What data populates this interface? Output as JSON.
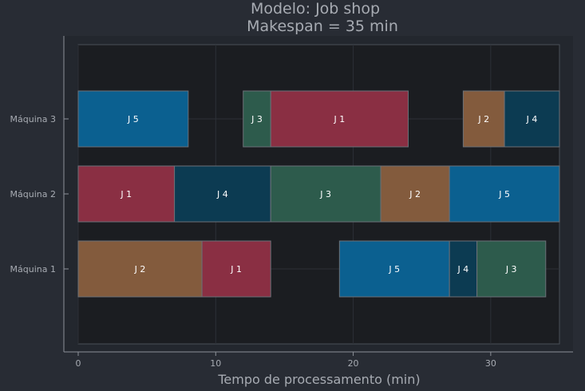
{
  "chart_data": {
    "type": "bar",
    "orientation": "horizontal-gantt",
    "title_line1": "Modelo: Job shop",
    "title_line2": "Makespan = 35 min",
    "xlabel": "Tempo de processamento (min)",
    "ylabel": "",
    "xlim": [
      0,
      35
    ],
    "xticks": [
      "0",
      "10",
      "20",
      "30"
    ],
    "xtick_values": [
      0,
      10,
      20,
      30
    ],
    "grid": true,
    "machines": [
      "Máquina 1",
      "Máquina 2",
      "Máquina 3"
    ],
    "job_colors": {
      "J 1": "#8a2f43",
      "J 2": "#835b3d",
      "J 3": "#2d5b4c",
      "J 4": "#0c3b52",
      "J 5": "#0b6090"
    },
    "tasks": [
      {
        "machine": "Máquina 1",
        "job": "J 2",
        "start": 0,
        "end": 9
      },
      {
        "machine": "Máquina 1",
        "job": "J 1",
        "start": 9,
        "end": 14
      },
      {
        "machine": "Máquina 1",
        "job": "J 5",
        "start": 19,
        "end": 27
      },
      {
        "machine": "Máquina 1",
        "job": "J 4",
        "start": 27,
        "end": 29
      },
      {
        "machine": "Máquina 1",
        "job": "J 3",
        "start": 29,
        "end": 34
      },
      {
        "machine": "Máquina 2",
        "job": "J 1",
        "start": 0,
        "end": 7
      },
      {
        "machine": "Máquina 2",
        "job": "J 4",
        "start": 7,
        "end": 14
      },
      {
        "machine": "Máquina 2",
        "job": "J 3",
        "start": 14,
        "end": 22
      },
      {
        "machine": "Máquina 2",
        "job": "J 2",
        "start": 22,
        "end": 27
      },
      {
        "machine": "Máquina 2",
        "job": "J 5",
        "start": 27,
        "end": 35
      },
      {
        "machine": "Máquina 3",
        "job": "J 5",
        "start": 0,
        "end": 8
      },
      {
        "machine": "Máquina 3",
        "job": "J 3",
        "start": 12,
        "end": 14
      },
      {
        "machine": "Máquina 3",
        "job": "J 1",
        "start": 14,
        "end": 24
      },
      {
        "machine": "Máquina 3",
        "job": "J 2",
        "start": 28,
        "end": 31
      },
      {
        "machine": "Máquina 3",
        "job": "J 4",
        "start": 31,
        "end": 35
      }
    ]
  }
}
